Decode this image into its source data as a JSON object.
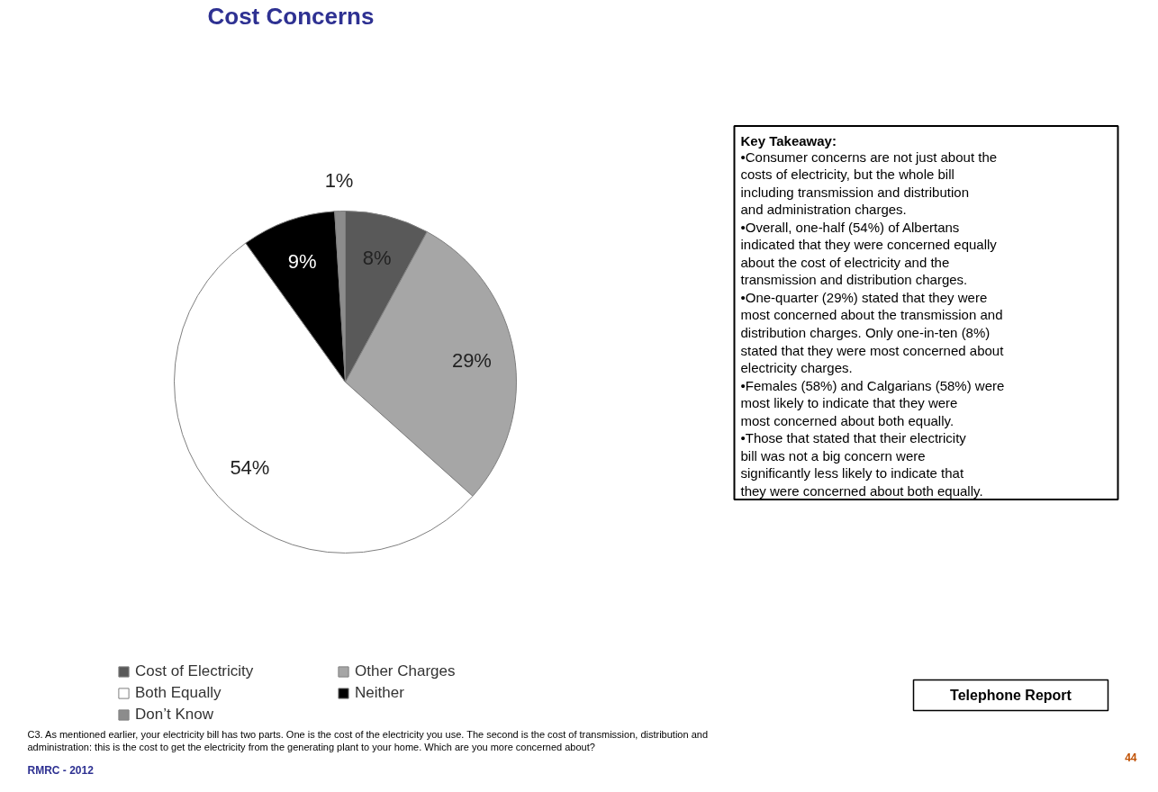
{
  "chart_data": {
    "type": "pie",
    "title": "Cost Concerns",
    "categories": [
      "Cost of Electricity",
      "Other Charges",
      "Both Equally",
      "Neither",
      "Don’t Know"
    ],
    "values": [
      8,
      29,
      54,
      9,
      1
    ],
    "colors": [
      "#595959",
      "#a6a6a6",
      "#ffffff",
      "#000000",
      "#8c8c8c"
    ],
    "value_labels": [
      "8%",
      "29%",
      "54%",
      "9%",
      "1%"
    ],
    "legend": "bottom left",
    "annotations": [
      "Key Takeaway:",
      "•Consumer concerns are not just about the costs of electricity, but the whole bill including transmission and distribution and administration charges.",
      "•Overall, one-half (54%) of Albertans indicated that they were concerned equally about the cost of electricity and the transmission and distribution charges.",
      "•One-quarter (29%) stated that they were most concerned about the transmission and distribution charges. Only one-in-ten (8%) stated that they were most concerned about electricity charges.",
      "•Females (58%) and Calgarians (58%) were most likely to indicate that they were most concerned about both equally.",
      "•Those that stated that their electricity bill was not a big concern were significantly less likely to indicate that they were concerned about both equally.",
      "Telephone Report",
      "C3. As mentioned earlier, your electricity bill has two parts. One is the cost of the electricity you use. The second is the cost of transmission, distribution and administration: this is the cost to get the electricity from the generating plant to your home. Which are you more concerned about?",
      "RMRC - 2012",
      "44"
    ]
  }
}
